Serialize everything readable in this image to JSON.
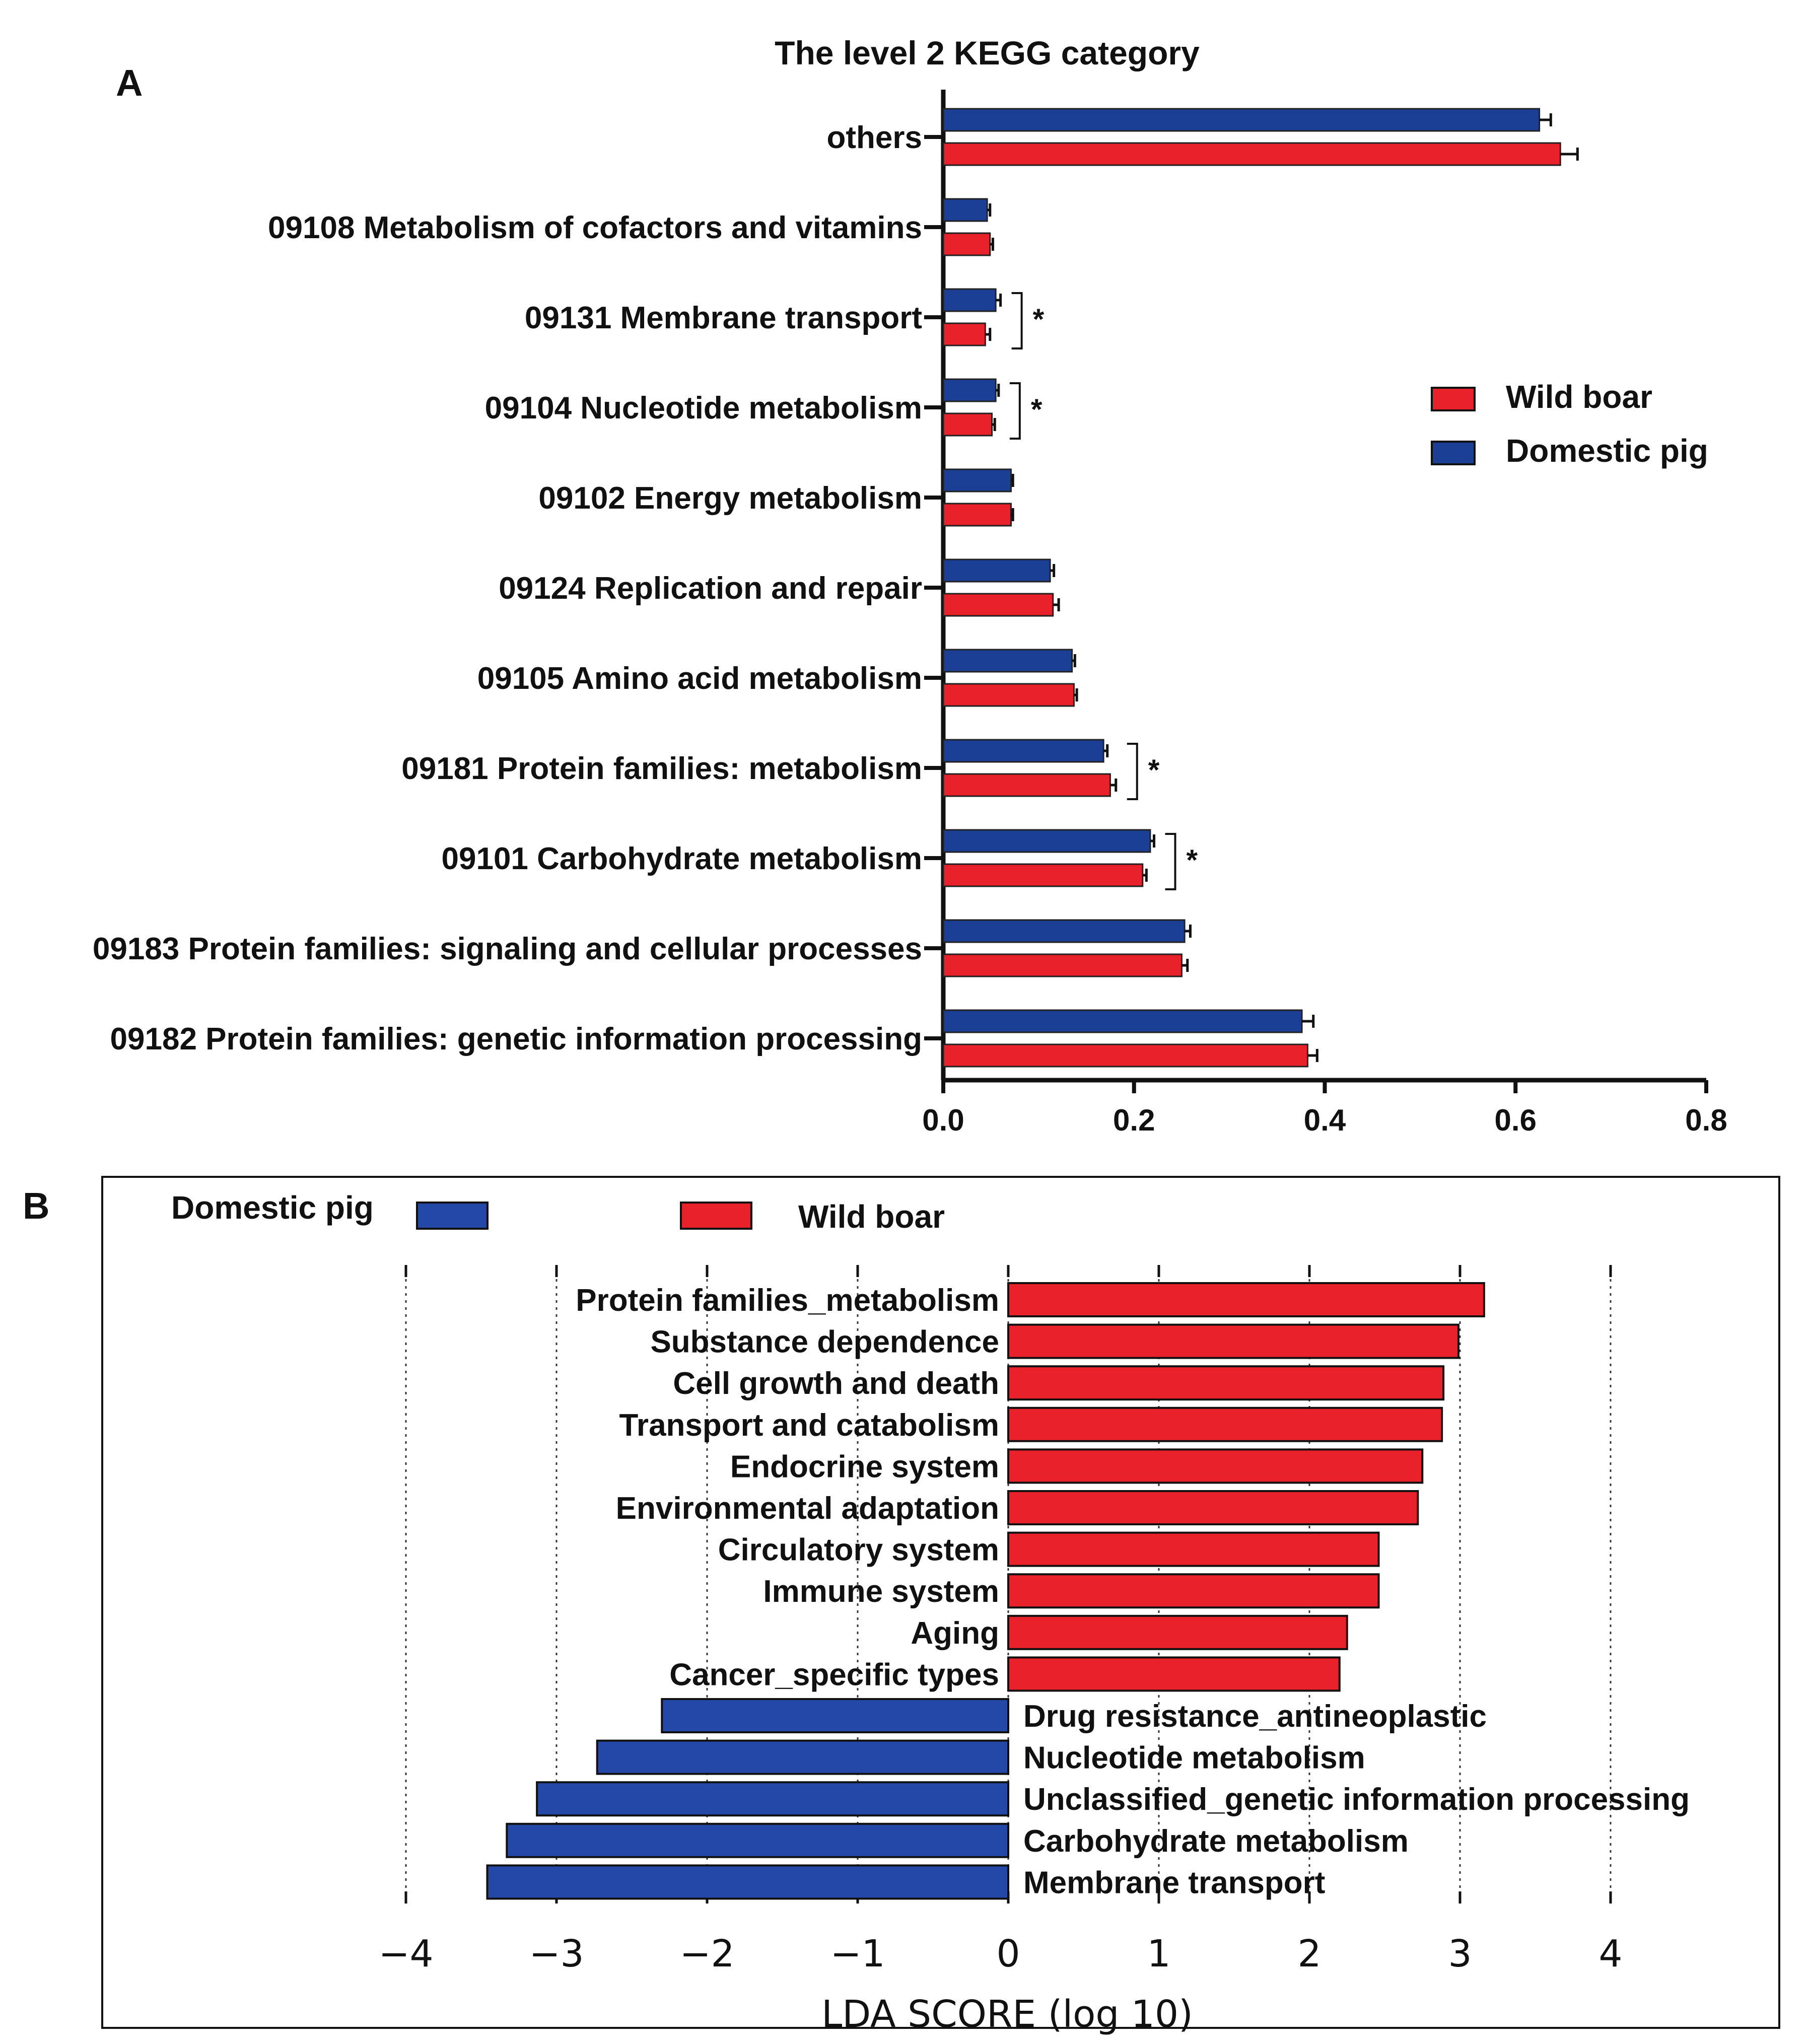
{
  "colors": {
    "wild": "#e8212b",
    "domestic": "#1c3f96",
    "domestic_lda": "#2448a8",
    "axis": "#111111"
  },
  "panelA": {
    "label": "A",
    "title": "The level 2 KEGG category",
    "legend": [
      {
        "name": "Wild boar",
        "color": "#e8212b"
      },
      {
        "name": "Domestic pig",
        "color": "#1c3f96"
      }
    ],
    "sig_marker": "*"
  },
  "panelB": {
    "label": "B",
    "legend": [
      {
        "name": "Domestic pig",
        "color": "#2448a8"
      },
      {
        "name": "Wild boar",
        "color": "#e8212b"
      }
    ]
  },
  "chart_data": [
    {
      "type": "bar",
      "orientation": "horizontal",
      "title": "The level 2 KEGG category",
      "categories": [
        "others",
        "09108 Metabolism of cofactors and vitamins",
        "09131 Membrane transport",
        "09104 Nucleotide metabolism",
        "09102 Energy metabolism",
        "09124 Replication and repair",
        "09105 Amino acid metabolism",
        "09181 Protein families: metabolism",
        "09101 Carbohydrate metabolism",
        "09183 Protein families: signaling and cellular processes",
        "09182 Protein families: genetic information processing"
      ],
      "series": [
        {
          "name": "Domestic pig",
          "color": "#1c3f96",
          "values": [
            0.625,
            0.046,
            0.055,
            0.055,
            0.071,
            0.112,
            0.135,
            0.168,
            0.217,
            0.253,
            0.376
          ],
          "errors": [
            0.012,
            0.003,
            0.005,
            0.003,
            0.002,
            0.004,
            0.003,
            0.004,
            0.004,
            0.006,
            0.012
          ]
        },
        {
          "name": "Wild boar",
          "color": "#e8212b",
          "values": [
            0.647,
            0.049,
            0.044,
            0.051,
            0.071,
            0.115,
            0.137,
            0.175,
            0.209,
            0.25,
            0.382
          ],
          "errors": [
            0.018,
            0.003,
            0.005,
            0.003,
            0.002,
            0.006,
            0.003,
            0.006,
            0.004,
            0.006,
            0.01
          ]
        }
      ],
      "significant": [
        false,
        false,
        true,
        true,
        false,
        false,
        false,
        true,
        true,
        false,
        false
      ],
      "xlim": [
        0,
        0.8
      ],
      "xticks": [
        "0.0",
        "0.2",
        "0.4",
        "0.6",
        "0.8"
      ],
      "legend_position": "right"
    },
    {
      "type": "bar",
      "orientation": "horizontal",
      "xlabel": "LDA SCORE (log 10)",
      "xlim": [
        -4,
        4
      ],
      "xticks": [
        "−4",
        "−3",
        "−2",
        "−1",
        "0",
        "1",
        "2",
        "3",
        "4"
      ],
      "legend_position": "top",
      "bars": [
        {
          "label": "Protein families_metabolism",
          "value": 3.16,
          "group": "Wild boar"
        },
        {
          "label": "Substance dependence",
          "value": 2.99,
          "group": "Wild boar"
        },
        {
          "label": "Cell growth and death",
          "value": 2.89,
          "group": "Wild boar"
        },
        {
          "label": "Transport and catabolism",
          "value": 2.88,
          "group": "Wild boar"
        },
        {
          "label": "Endocrine system",
          "value": 2.75,
          "group": "Wild boar"
        },
        {
          "label": "Environmental adaptation",
          "value": 2.72,
          "group": "Wild boar"
        },
        {
          "label": "Circulatory system",
          "value": 2.46,
          "group": "Wild boar"
        },
        {
          "label": "Immune system",
          "value": 2.46,
          "group": "Wild boar"
        },
        {
          "label": "Aging",
          "value": 2.25,
          "group": "Wild boar"
        },
        {
          "label": "Cancer_specific types",
          "value": 2.2,
          "group": "Wild boar"
        },
        {
          "label": "Drug resistance_antineoplastic",
          "value": -2.3,
          "group": "Domestic pig"
        },
        {
          "label": "Nucleotide metabolism",
          "value": -2.73,
          "group": "Domestic pig"
        },
        {
          "label": "Unclassified_genetic information processing",
          "value": -3.13,
          "group": "Domestic pig"
        },
        {
          "label": "Carbohydrate metabolism",
          "value": -3.33,
          "group": "Domestic pig"
        },
        {
          "label": "Membrane transport",
          "value": -3.46,
          "group": "Domestic pig"
        }
      ]
    }
  ]
}
